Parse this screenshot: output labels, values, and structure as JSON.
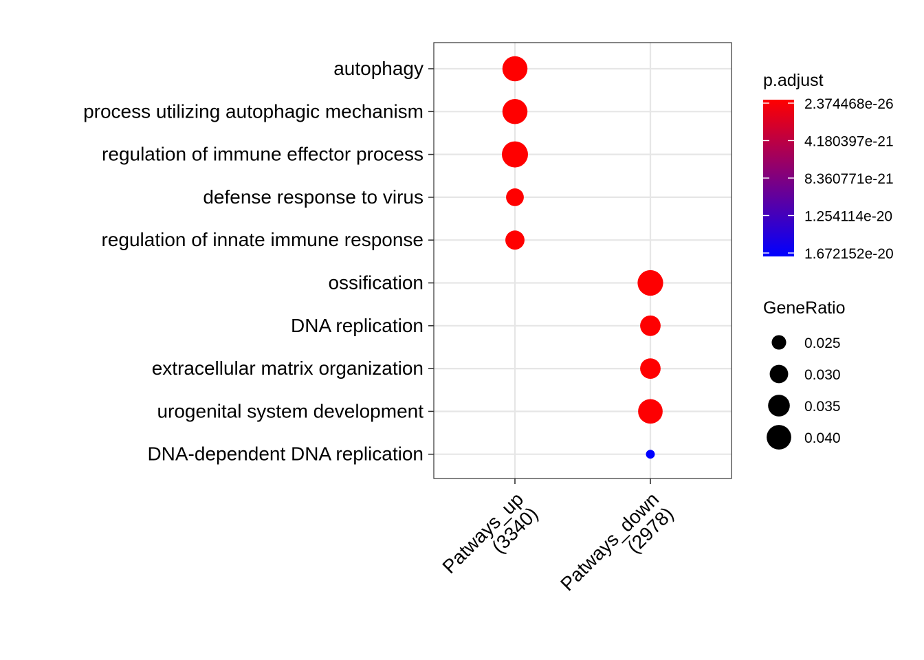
{
  "chart_data": {
    "type": "scatter",
    "title": "",
    "xlabel": "",
    "ylabel": "",
    "x_categories": [
      [
        "Patways_up",
        "(3340)"
      ],
      [
        "Patways_down",
        "(2978)"
      ]
    ],
    "y_categories": [
      "autophagy",
      "process utilizing autophagic mechanism",
      "regulation of immune effector process",
      "defense response to virus",
      "regulation of innate immune response",
      "ossification",
      "DNA replication",
      "extracellular matrix organization",
      "urogenital system development",
      "DNA-dependent DNA replication"
    ],
    "points": [
      {
        "x": 0,
        "y": 0,
        "gene_ratio": 0.041,
        "p_adjust": 2.4e-26
      },
      {
        "x": 0,
        "y": 1,
        "gene_ratio": 0.041,
        "p_adjust": 2.4e-26
      },
      {
        "x": 0,
        "y": 2,
        "gene_ratio": 0.043,
        "p_adjust": 2.4e-26
      },
      {
        "x": 0,
        "y": 3,
        "gene_ratio": 0.029,
        "p_adjust": 1e-24
      },
      {
        "x": 0,
        "y": 4,
        "gene_ratio": 0.031,
        "p_adjust": 1e-24
      },
      {
        "x": 1,
        "y": 5,
        "gene_ratio": 0.042,
        "p_adjust": 5e-23
      },
      {
        "x": 1,
        "y": 6,
        "gene_ratio": 0.033,
        "p_adjust": 5e-23
      },
      {
        "x": 1,
        "y": 7,
        "gene_ratio": 0.033,
        "p_adjust": 5e-23
      },
      {
        "x": 1,
        "y": 8,
        "gene_ratio": 0.04,
        "p_adjust": 1e-22
      },
      {
        "x": 1,
        "y": 9,
        "gene_ratio": 0.02,
        "p_adjust": 1.672152e-20
      }
    ],
    "color_legend": {
      "title": "p.adjust",
      "low_color": "#FF0000",
      "high_color": "#0000FF",
      "range": [
        2.374468e-26,
        1.672152e-20
      ],
      "breaks": [
        2.374468e-26,
        4.180397e-21,
        8.360771e-21,
        1.254114e-20,
        1.672152e-20
      ],
      "labels": [
        "2.374468e-26",
        "4.180397e-21",
        "8.360771e-21",
        "1.254114e-20",
        "1.672152e-20"
      ]
    },
    "size_legend": {
      "title": "GeneRatio",
      "values": [
        0.025,
        0.03,
        0.035,
        0.04
      ],
      "labels": [
        "0.025",
        "0.030",
        "0.035",
        "0.040"
      ]
    },
    "grid": true,
    "legend_position": "right"
  }
}
